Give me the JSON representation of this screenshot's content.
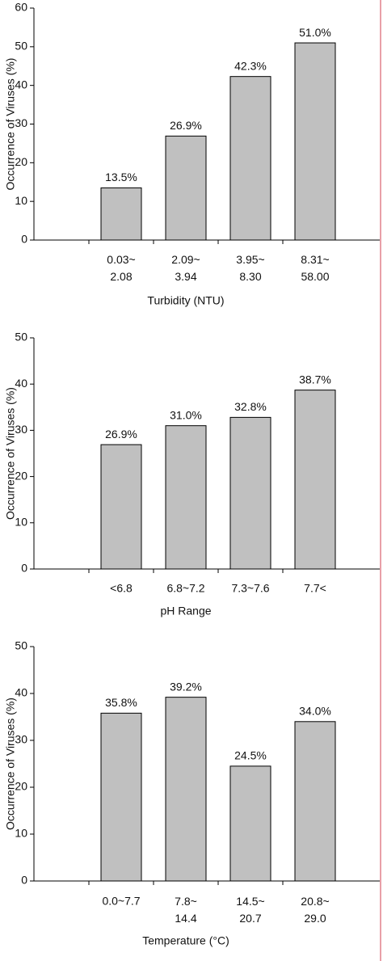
{
  "chart_data": [
    {
      "type": "bar",
      "y_label": "Occurrence of Viruses (%)",
      "x_label": "Turbidity (NTU)",
      "categories": [
        [
          "0.03~",
          "2.08"
        ],
        [
          "2.09~",
          "3.94"
        ],
        [
          "3.95~",
          "8.30"
        ],
        [
          "8.31~",
          "58.00"
        ]
      ],
      "values": [
        13.5,
        26.9,
        42.3,
        51.0
      ],
      "value_labels": [
        "13.5%",
        "26.9%",
        "42.3%",
        "51.0%"
      ],
      "color": "#c0c0c0",
      "ylim": [
        0,
        60
      ],
      "yticks": [
        0,
        10,
        20,
        30,
        40,
        50,
        60
      ]
    },
    {
      "type": "bar",
      "y_label": "Occurrence of Viruses (%)",
      "x_label": "pH Range",
      "categories": [
        "<6.8",
        "6.8~7.2",
        "7.3~7.6",
        "7.7<"
      ],
      "values": [
        26.9,
        31.0,
        32.8,
        38.7
      ],
      "value_labels": [
        "26.9%",
        "31.0%",
        "32.8%",
        "38.7%"
      ],
      "color": "#c0c0c0",
      "ylim": [
        0,
        50
      ],
      "yticks": [
        0,
        10,
        20,
        30,
        40,
        50
      ]
    },
    {
      "type": "bar",
      "y_label": "Occurrence of Viruses (%)",
      "x_label": "Temperature (°C)",
      "categories": [
        "0.0~7.7",
        [
          "7.8~",
          "14.4"
        ],
        [
          "14.5~",
          "20.7"
        ],
        [
          "20.8~",
          "29.0"
        ]
      ],
      "values": [
        35.8,
        39.2,
        24.5,
        34.0
      ],
      "value_labels": [
        "35.8%",
        "39.2%",
        "24.5%",
        "34.0%"
      ],
      "color": "#c0c0c0",
      "ylim": [
        0,
        50
      ],
      "yticks": [
        0,
        10,
        20,
        30,
        40,
        50
      ]
    }
  ]
}
